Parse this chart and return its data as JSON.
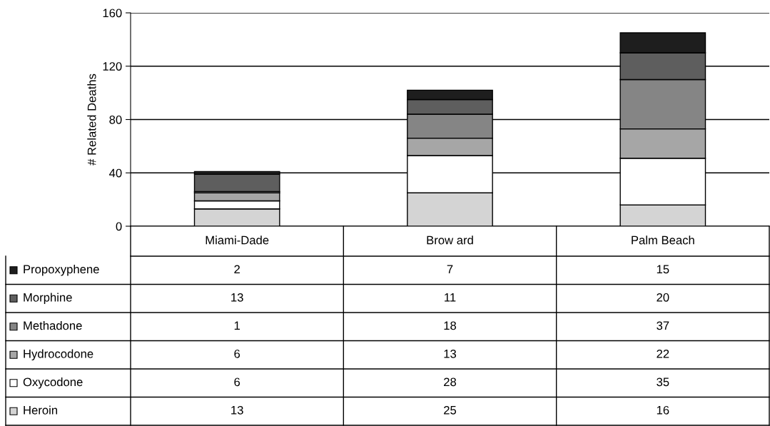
{
  "chart_data": {
    "type": "bar",
    "stacked": true,
    "ylabel": "# Related Deaths",
    "categories": [
      "Miami-Dade",
      "Brow ard",
      "Palm Beach"
    ],
    "series": [
      {
        "name": "Heroin",
        "color": "#d4d4d4",
        "values": [
          13,
          25,
          16
        ]
      },
      {
        "name": "Oxycodone",
        "color": "#ffffff",
        "values": [
          6,
          28,
          35
        ]
      },
      {
        "name": "Hydrocodone",
        "color": "#a6a6a6",
        "values": [
          6,
          13,
          22
        ]
      },
      {
        "name": "Methadone",
        "color": "#858585",
        "values": [
          1,
          18,
          37
        ]
      },
      {
        "name": "Morphine",
        "color": "#5e5e5e",
        "values": [
          13,
          11,
          20
        ]
      },
      {
        "name": "Propoxyphene",
        "color": "#1e1e1e",
        "values": [
          2,
          7,
          15
        ]
      }
    ],
    "ylim": [
      0,
      160
    ],
    "yticks": [
      0,
      40,
      80,
      120,
      160
    ],
    "grid": "y",
    "data_labels": true,
    "legend": "bottom left"
  }
}
